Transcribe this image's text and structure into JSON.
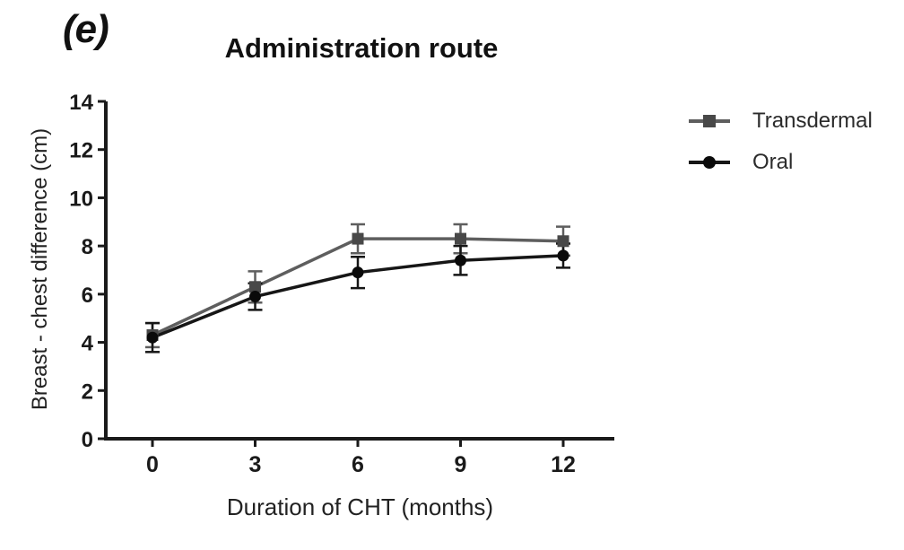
{
  "panel_label": "(e)",
  "title": "Administration route",
  "legend": {
    "items": [
      {
        "label": "Transdermal",
        "marker": "square"
      },
      {
        "label": "Oral",
        "marker": "circle"
      }
    ]
  },
  "colors": {
    "ink": "#1a1a1a",
    "transdermal_line": "#5e5e5e",
    "transdermal_marker": "#484848",
    "oral_line": "#161616",
    "oral_marker": "#0a0a0a"
  },
  "chart_data": {
    "type": "line",
    "title": "Administration route",
    "xlabel": "Duration of CHT (months)",
    "ylabel": "Breast - chest difference (cm)",
    "x": [
      0,
      3,
      6,
      9,
      12
    ],
    "xticks": [
      0,
      3,
      6,
      9,
      12
    ],
    "yticks": [
      0,
      2,
      4,
      6,
      8,
      10,
      12,
      14
    ],
    "xlim": [
      0,
      12
    ],
    "ylim": [
      0,
      14
    ],
    "grid": false,
    "legend_position": "right",
    "error_bars": true,
    "series": [
      {
        "name": "Transdermal",
        "marker": "square",
        "color": "#5e5e5e",
        "marker_color": "#484848",
        "values": [
          4.3,
          6.3,
          8.3,
          8.3,
          8.2
        ],
        "errors": [
          0.5,
          0.65,
          0.6,
          0.6,
          0.6
        ]
      },
      {
        "name": "Oral",
        "marker": "circle",
        "color": "#161616",
        "marker_color": "#0a0a0a",
        "values": [
          4.2,
          5.9,
          6.9,
          7.4,
          7.6
        ],
        "errors": [
          0.6,
          0.55,
          0.65,
          0.6,
          0.5
        ]
      }
    ]
  }
}
